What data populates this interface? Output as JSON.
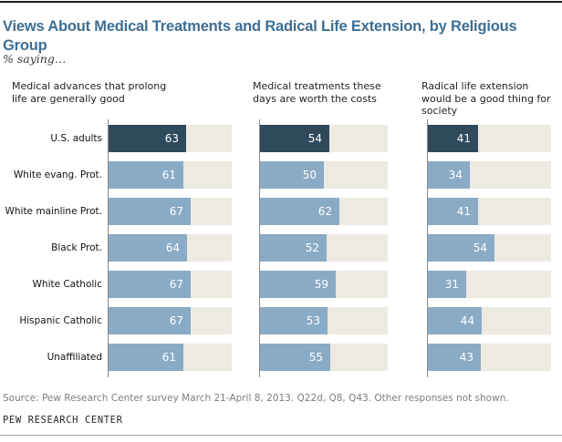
{
  "page": {
    "title": "Views About Medical Treatments and Radical Life Extension, by Religious Group",
    "subtitle": "% saying…",
    "source": "Source: Pew Research Center survey March 21-April 8, 2013. Q22d, Q8, Q43. Other responses not shown.",
    "footer": "PEW RESEARCH CENTER"
  },
  "chart_data": {
    "type": "bar",
    "orientation": "horizontal",
    "title": "Views About Medical Treatments and Radical Life Extension, by Religious Group",
    "subtitle": "% saying…",
    "categories": [
      "U.S. adults",
      "White evang. Prot.",
      "White mainline Prot.",
      "Black Prot.",
      "White Catholic",
      "Hispanic Catholic",
      "Unaffiliated"
    ],
    "series": [
      {
        "name": "Medical advances that prolong life are generally good",
        "label_lines": [
          "Medical advances that prolong",
          "life are generally good"
        ],
        "values": [
          63,
          61,
          67,
          64,
          67,
          67,
          61
        ]
      },
      {
        "name": "Medical treatments these days are worth the costs",
        "label_lines": [
          "Medical treatments these",
          "days are worth the costs"
        ],
        "values": [
          54,
          50,
          62,
          52,
          59,
          53,
          55
        ]
      },
      {
        "name": "Radical life extension would be a good thing for society",
        "label_lines": [
          "Radical life extension",
          "would be a good thing for",
          "society"
        ],
        "values": [
          41,
          34,
          41,
          54,
          31,
          44,
          43
        ]
      }
    ],
    "xlim": [
      0,
      100
    ],
    "grid": false,
    "legend": "none",
    "highlight_category": "U.S. adults",
    "colors": {
      "highlight_bar": "#2f4a5d",
      "bar": "#8aabc6",
      "track": "#edeae2",
      "axis": "#8a8a8a",
      "title": "#3d6e93",
      "value_label": "#ffffff"
    }
  }
}
